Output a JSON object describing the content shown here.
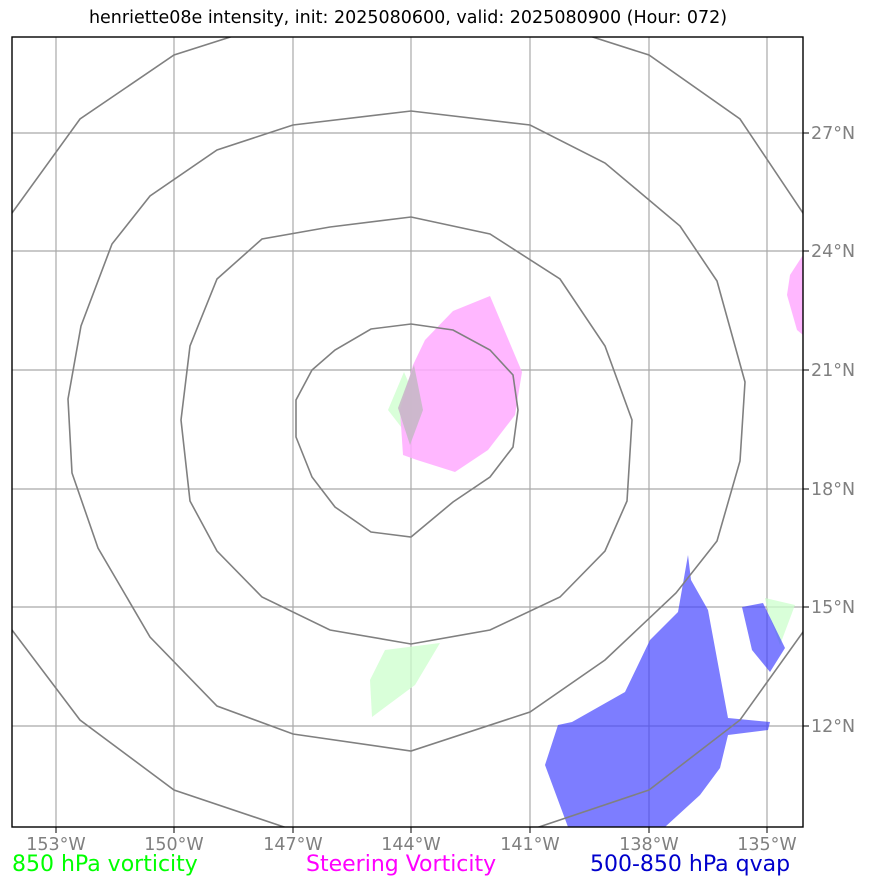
{
  "title": "henriette08e intensity, init: 2025080600, valid: 2025080900 (Hour: 072)",
  "map": {
    "lon_labels": [
      "153°W",
      "150°W",
      "147°W",
      "144°W",
      "141°W",
      "138°W",
      "135°W"
    ],
    "lat_labels": [
      "27°N",
      "24°N",
      "21°N",
      "18°N",
      "15°N",
      "12°N"
    ],
    "colors": {
      "gridline": "#a9a9a9",
      "ring": "#808080",
      "vorticity_850": "#ccffcc",
      "steering_vorticity": "#ffaaff",
      "qvap_500_850": "#4040ff"
    }
  },
  "legend": {
    "vort850": {
      "label": "850 hPa vorticity",
      "color": "#00ff00"
    },
    "steering": {
      "label": "Steering Vorticity",
      "color": "#ff00ff"
    },
    "qvap": {
      "label": "500-850 hPa qvap",
      "color": "#0000cc"
    }
  }
}
